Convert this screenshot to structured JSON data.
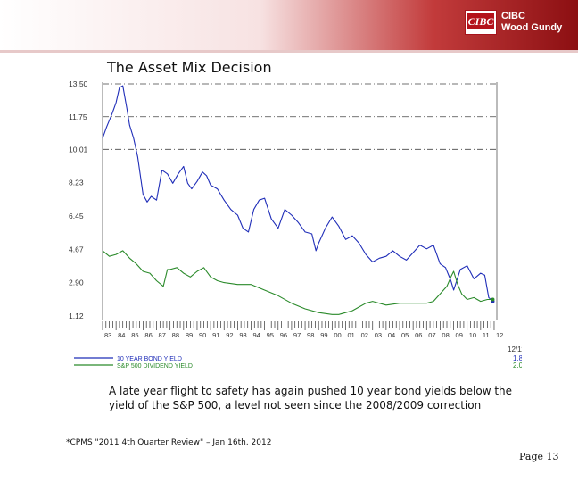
{
  "brand": {
    "logo_text": "CIBC",
    "line1": "CIBC",
    "line2": "Wood Gundy"
  },
  "slide": {
    "title": "The Asset Mix Decision",
    "note": "A late year flight to safety has again pushed 10 year bond yields below the yield of the S&P 500, a level not seen since the 2008/2009 correction",
    "source": "*CPMS \"2011 4th Quarter Review\" – Jan 16th, 2012",
    "page": "Page 13"
  },
  "chart_data": {
    "type": "line",
    "title": "",
    "xlabel": "",
    "ylabel": "",
    "x_tick_labels": [
      "83",
      "84",
      "85",
      "86",
      "87",
      "88",
      "89",
      "90",
      "91",
      "92",
      "93",
      "94",
      "95",
      "96",
      "97",
      "98",
      "99",
      "00",
      "01",
      "02",
      "03",
      "04",
      "05",
      "06",
      "07",
      "08",
      "09",
      "10",
      "11",
      "12"
    ],
    "y_tick_labels": [
      "13.50",
      "11.75",
      "10.01",
      "8.23",
      "6.45",
      "4.67",
      "2.90",
      "1.12"
    ],
    "y_ticks": [
      13.5,
      11.75,
      10.01,
      8.23,
      6.45,
      4.67,
      2.9,
      1.12
    ],
    "ylim": [
      1.12,
      13.5
    ],
    "xlim": [
      1983,
      2012.2
    ],
    "end_date_label": "12/11",
    "grid": "horizontal dash-dot",
    "legend_position": "bottom",
    "series": [
      {
        "name": "10 YEAR BOND YIELD",
        "color": "#1f2db8",
        "last_value": "1.88",
        "x": [
          1983.0,
          1983.3,
          1983.7,
          1984.0,
          1984.25,
          1984.5,
          1984.8,
          1985.0,
          1985.3,
          1985.6,
          1986.0,
          1986.3,
          1986.6,
          1987.0,
          1987.4,
          1987.8,
          1988.2,
          1988.6,
          1989.0,
          1989.3,
          1989.6,
          1990.0,
          1990.4,
          1990.7,
          1991.0,
          1991.5,
          1992.0,
          1992.5,
          1993.0,
          1993.4,
          1993.8,
          1994.2,
          1994.6,
          1995.0,
          1995.5,
          1996.0,
          1996.5,
          1997.0,
          1997.5,
          1998.0,
          1998.5,
          1998.8,
          1999.0,
          1999.5,
          2000.0,
          2000.5,
          2001.0,
          2001.5,
          2002.0,
          2002.5,
          2003.0,
          2003.5,
          2004.0,
          2004.5,
          2005.0,
          2005.5,
          2006.0,
          2006.5,
          2007.0,
          2007.5,
          2008.0,
          2008.4,
          2008.8,
          2009.0,
          2009.5,
          2010.0,
          2010.5,
          2011.0,
          2011.3,
          2011.6,
          2011.9
        ],
        "y": [
          10.6,
          11.2,
          11.9,
          12.5,
          13.3,
          13.4,
          12.2,
          11.3,
          10.6,
          9.6,
          7.6,
          7.2,
          7.5,
          7.3,
          8.9,
          8.7,
          8.2,
          8.7,
          9.1,
          8.2,
          7.9,
          8.3,
          8.8,
          8.6,
          8.1,
          7.9,
          7.3,
          6.8,
          6.5,
          5.8,
          5.6,
          6.8,
          7.3,
          7.4,
          6.3,
          5.8,
          6.8,
          6.5,
          6.1,
          5.6,
          5.5,
          4.6,
          5.0,
          5.8,
          6.4,
          5.9,
          5.2,
          5.4,
          5.0,
          4.4,
          4.0,
          4.2,
          4.3,
          4.6,
          4.3,
          4.1,
          4.5,
          4.9,
          4.7,
          4.9,
          3.9,
          3.7,
          3.0,
          2.5,
          3.6,
          3.8,
          3.1,
          3.4,
          3.3,
          2.1,
          1.9
        ]
      },
      {
        "name": "S&P 500 DIVIDEND YIELD",
        "color": "#2a8a2a",
        "last_value": "2.01",
        "x": [
          1983.0,
          1983.5,
          1984.0,
          1984.5,
          1985.0,
          1985.5,
          1986.0,
          1986.5,
          1987.0,
          1987.5,
          1987.8,
          1988.0,
          1988.5,
          1989.0,
          1989.5,
          1990.0,
          1990.5,
          1991.0,
          1991.5,
          1992.0,
          1993.0,
          1994.0,
          1995.0,
          1996.0,
          1997.0,
          1998.0,
          1999.0,
          2000.0,
          2000.5,
          2001.0,
          2001.5,
          2002.0,
          2002.5,
          2003.0,
          2004.0,
          2005.0,
          2006.0,
          2007.0,
          2007.5,
          2008.0,
          2008.5,
          2008.8,
          2009.0,
          2009.3,
          2009.6,
          2010.0,
          2010.5,
          2011.0,
          2011.5,
          2011.9
        ],
        "y": [
          4.6,
          4.3,
          4.4,
          4.6,
          4.2,
          3.9,
          3.5,
          3.4,
          3.0,
          2.7,
          3.6,
          3.6,
          3.7,
          3.4,
          3.2,
          3.5,
          3.7,
          3.2,
          3.0,
          2.9,
          2.8,
          2.8,
          2.5,
          2.2,
          1.8,
          1.5,
          1.3,
          1.2,
          1.2,
          1.3,
          1.4,
          1.6,
          1.8,
          1.9,
          1.7,
          1.8,
          1.8,
          1.8,
          1.9,
          2.3,
          2.7,
          3.2,
          3.5,
          2.8,
          2.3,
          2.0,
          2.1,
          1.9,
          2.0,
          2.0
        ]
      }
    ]
  }
}
